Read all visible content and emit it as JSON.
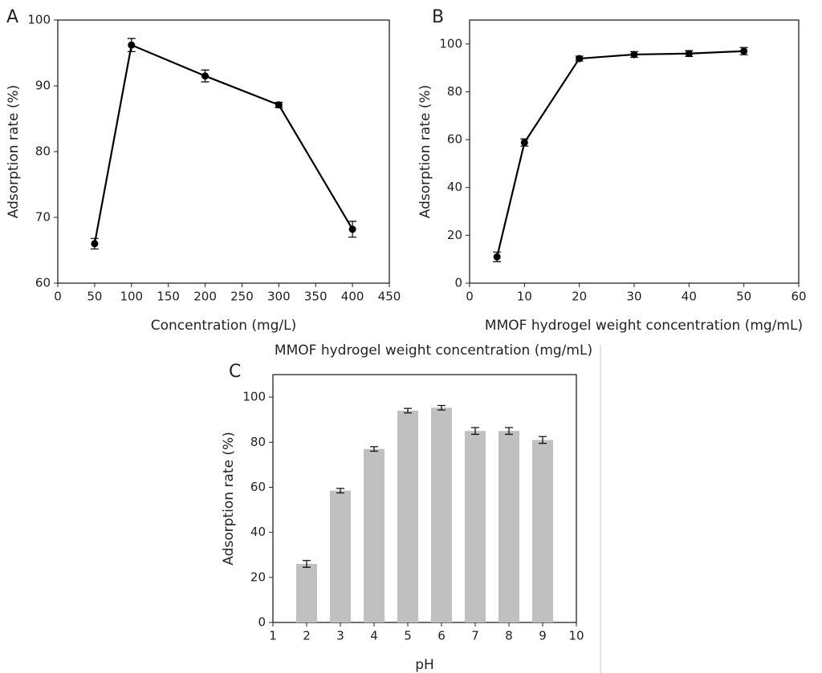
{
  "chart_data": [
    {
      "type": "line",
      "panel_label": "A",
      "x_label": "Concentration (mg/L)",
      "y_label": "Adsorption rate (%)",
      "x": [
        50,
        100,
        200,
        300,
        400
      ],
      "values": [
        66,
        96.2,
        91.5,
        87.1,
        68.2
      ],
      "errors": [
        0.8,
        1,
        0.9,
        0.4,
        1.2
      ],
      "color": "#000000",
      "xlim": [
        0,
        450
      ],
      "xticks": [
        0,
        50,
        100,
        150,
        200,
        250,
        300,
        350,
        400,
        450
      ],
      "ylim": [
        60,
        100
      ],
      "yticks": [
        60,
        70,
        80,
        90,
        100
      ]
    },
    {
      "type": "line",
      "panel_label": "B",
      "x_label": "MMOF   hydrogel weight concentration (mg/mL)",
      "y_label": "Adsorption rate (%)",
      "x": [
        5,
        10,
        20,
        30,
        40,
        50
      ],
      "values": [
        11,
        58.8,
        93.9,
        95.6,
        96,
        97
      ],
      "errors": [
        2,
        1.5,
        1,
        1.2,
        1.2,
        1.5
      ],
      "color": "#000000",
      "xlim": [
        0,
        60
      ],
      "xticks": [
        0,
        10,
        20,
        30,
        40,
        50,
        60
      ],
      "ylim": [
        0,
        110
      ],
      "yticks": [
        0,
        20,
        40,
        60,
        80,
        100
      ]
    },
    {
      "type": "bar",
      "panel_label": "C",
      "x_label": "pH",
      "y_label": "Adsorption rate (%)",
      "x": [
        2,
        3,
        4,
        5,
        6,
        7,
        8,
        9
      ],
      "values": [
        26,
        58.5,
        77,
        94,
        95.3,
        85,
        85,
        81
      ],
      "errors": [
        1.5,
        1,
        1,
        1,
        1,
        1.5,
        1.5,
        1.5
      ],
      "color": "#c0c0c0",
      "xlim": [
        1,
        10
      ],
      "xticks": [
        1,
        2,
        3,
        4,
        5,
        6,
        7,
        8,
        9,
        10
      ],
      "ylim": [
        0,
        110
      ],
      "yticks": [
        0,
        20,
        40,
        60,
        80,
        100
      ]
    }
  ],
  "caption": "MMOF   hydrogel weight concentration (mg/mL)"
}
